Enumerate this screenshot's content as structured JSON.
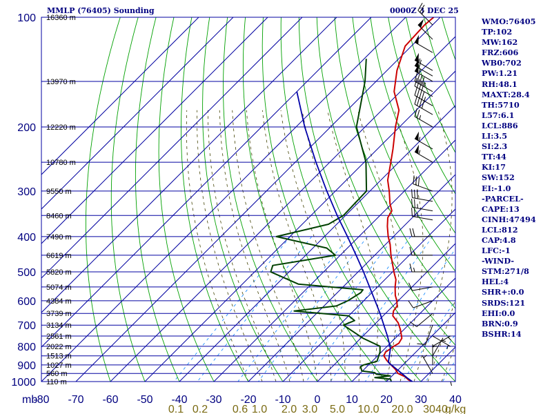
{
  "header": {
    "title": "MMLP (76405) Sounding",
    "time": "0000Z  3 DEC 25"
  },
  "indices": [
    "WMO:76405",
    "TP:102",
    "MW:162",
    "FRZ:606",
    "WB0:702",
    "PW:1.21",
    "RH:48.1",
    "MAXT:28.4",
    "TH:5710",
    "L57:6.1",
    "LCL:886",
    "LI:3.5",
    "SI:2.3",
    "TT:44",
    "KI:17",
    "SW:152",
    "EI:-1.0",
    "-PARCEL-",
    "CAPE:13",
    "CINH:47494",
    "LCL:812",
    "CAP:4.8",
    "LFC:-1",
    "-WIND-",
    "STM:271/8",
    "HEL:4",
    "SHR+:0.0",
    "SRDS:121",
    "EHI:0.0",
    "BRN:0.9",
    "BSHR:14"
  ],
  "chart_data": {
    "type": "line",
    "subtype": "skew-T log-P sounding",
    "pressure_unit": "mb",
    "pressure_ticks": [
      100,
      200,
      300,
      400,
      500,
      600,
      700,
      800,
      900,
      1000
    ],
    "pressure_range": [
      100,
      1000
    ],
    "pressure_log_scale": true,
    "temperature_ticks": [
      -80,
      -70,
      -60,
      -50,
      -40,
      -30,
      -20,
      -10,
      0,
      10,
      20,
      30,
      40
    ],
    "temperature_range_at_bottom": [
      -80,
      40
    ],
    "mixing_ratio_unit": "g/kg",
    "mixing_ratio_labels": [
      "0.1",
      "0.2",
      "0.6",
      "1.0",
      "2.0",
      "3.0",
      "5.0",
      "10.0",
      "20.0",
      "30",
      "40"
    ],
    "height_labels": [
      {
        "p": 100,
        "label": "16360 m"
      },
      {
        "p": 150,
        "label": "13970 m"
      },
      {
        "p": 200,
        "label": "12220 m"
      },
      {
        "p": 250,
        "label": "10780 m"
      },
      {
        "p": 300,
        "label": "9550 m"
      },
      {
        "p": 350,
        "label": "8460 m"
      },
      {
        "p": 400,
        "label": "7490 m"
      },
      {
        "p": 450,
        "label": "6619 m"
      },
      {
        "p": 500,
        "label": "5820 m"
      },
      {
        "p": 550,
        "label": "5074 m"
      },
      {
        "p": 600,
        "label": "4384 m"
      },
      {
        "p": 650,
        "label": "3739 m"
      },
      {
        "p": 700,
        "label": "3134 m"
      },
      {
        "p": 750,
        "label": "2561 m"
      },
      {
        "p": 800,
        "label": "2022 m"
      },
      {
        "p": 850,
        "label": "1513 m"
      },
      {
        "p": 900,
        "label": "1027 m"
      },
      {
        "p": 950,
        "label": "560 m"
      },
      {
        "p": 1000,
        "label": "110 m"
      }
    ],
    "series": [
      {
        "name": "Temperature",
        "color": "#cc0000",
        "points": [
          [
            1000,
            27.5
          ],
          [
            990,
            26
          ],
          [
            970,
            24
          ],
          [
            950,
            21
          ],
          [
            925,
            19
          ],
          [
            900,
            16.5
          ],
          [
            875,
            14
          ],
          [
            850,
            11.8
          ],
          [
            830,
            11.2
          ],
          [
            815,
            11.6
          ],
          [
            800,
            11.9
          ],
          [
            785,
            12.5
          ],
          [
            760,
            11.9
          ],
          [
            720,
            9
          ],
          [
            690,
            6.4
          ],
          [
            660,
            2.8
          ],
          [
            640,
            1.6
          ],
          [
            620,
            1.2
          ],
          [
            600,
            -0.4
          ],
          [
            580,
            -2.4
          ],
          [
            550,
            -4.9
          ],
          [
            525,
            -6.8
          ],
          [
            500,
            -9.6
          ],
          [
            450,
            -15.3
          ],
          [
            420,
            -18.7
          ],
          [
            400,
            -21.5
          ],
          [
            375,
            -24.7
          ],
          [
            355,
            -27.1
          ],
          [
            340,
            -27.9
          ],
          [
            325,
            -30.5
          ],
          [
            300,
            -34.4
          ],
          [
            280,
            -38
          ],
          [
            250,
            -42.3
          ],
          [
            230,
            -45.5
          ],
          [
            200,
            -51.2
          ],
          [
            180,
            -55
          ],
          [
            160,
            -61.8
          ],
          [
            140,
            -67.1
          ],
          [
            120,
            -71.8
          ],
          [
            105,
            -72.3
          ],
          [
            100,
            -71.9
          ]
        ]
      },
      {
        "name": "Dewpoint",
        "color": "#004000",
        "points": [
          [
            1000,
            21.4
          ],
          [
            985,
            20.5
          ],
          [
            975,
            15.5
          ],
          [
            965,
            19.5
          ],
          [
            955,
            15
          ],
          [
            945,
            14
          ],
          [
            935,
            9.8
          ],
          [
            910,
            8.2
          ],
          [
            900,
            8.6
          ],
          [
            880,
            11.4
          ],
          [
            830,
            9.6
          ],
          [
            800,
            7.9
          ],
          [
            760,
            0.6
          ],
          [
            700,
            -8.8
          ],
          [
            680,
            -6.9
          ],
          [
            660,
            -10
          ],
          [
            640,
            -27.2
          ],
          [
            620,
            -16.4
          ],
          [
            600,
            -14.6
          ],
          [
            570,
            -13.2
          ],
          [
            560,
            -13.4
          ],
          [
            540,
            -33.8
          ],
          [
            500,
            -45.3
          ],
          [
            480,
            -46.6
          ],
          [
            450,
            -31.4
          ],
          [
            430,
            -36
          ],
          [
            400,
            -53.9
          ],
          [
            370,
            -42.4
          ],
          [
            350,
            -40.6
          ],
          [
            300,
            -41
          ],
          [
            250,
            -49.5
          ],
          [
            200,
            -62.5
          ],
          [
            150,
            -73.2
          ],
          [
            130,
            -79.4
          ]
        ]
      },
      {
        "name": "Parcel",
        "color": "#0000a8",
        "points": [
          [
            1000,
            27.5
          ],
          [
            980,
            25.3
          ],
          [
            950,
            22.1
          ],
          [
            900,
            16.6
          ],
          [
            886,
            15.0
          ],
          [
            850,
            13.4
          ],
          [
            812,
            11.6
          ],
          [
            800,
            10.8
          ],
          [
            750,
            7.1
          ],
          [
            700,
            2.9
          ],
          [
            650,
            -1.6
          ],
          [
            600,
            -6.7
          ],
          [
            550,
            -12.3
          ],
          [
            500,
            -18.4
          ],
          [
            450,
            -25.4
          ],
          [
            400,
            -33.3
          ],
          [
            350,
            -42.4
          ],
          [
            300,
            -52.5
          ],
          [
            250,
            -64.0
          ],
          [
            200,
            -77.5
          ],
          [
            160,
            -90.0
          ]
        ]
      }
    ],
    "wind_barbs": [
      {
        "p": 105,
        "dir": 315,
        "spd": 25
      },
      {
        "p": 115,
        "dir": 315,
        "spd": 50
      },
      {
        "p": 125,
        "dir": 300,
        "spd": 50
      },
      {
        "p": 140,
        "dir": 300,
        "spd": 55
      },
      {
        "p": 145,
        "dir": 300,
        "spd": 60
      },
      {
        "p": 150,
        "dir": 300,
        "spd": 55
      },
      {
        "p": 160,
        "dir": 300,
        "spd": 45
      },
      {
        "p": 165,
        "dir": 300,
        "spd": 40
      },
      {
        "p": 175,
        "dir": 300,
        "spd": 45
      },
      {
        "p": 185,
        "dir": 300,
        "spd": 40
      },
      {
        "p": 200,
        "dir": 300,
        "spd": 25
      },
      {
        "p": 230,
        "dir": 300,
        "spd": 55
      },
      {
        "p": 250,
        "dir": 300,
        "spd": 55
      },
      {
        "p": 300,
        "dir": 290,
        "spd": 30
      },
      {
        "p": 320,
        "dir": 280,
        "spd": 30
      },
      {
        "p": 340,
        "dir": 280,
        "spd": 25
      },
      {
        "p": 360,
        "dir": 280,
        "spd": 25
      },
      {
        "p": 400,
        "dir": 270,
        "spd": 20
      },
      {
        "p": 450,
        "dir": 270,
        "spd": 15
      },
      {
        "p": 500,
        "dir": 270,
        "spd": 15
      },
      {
        "p": 550,
        "dir": 260,
        "spd": 10
      },
      {
        "p": 600,
        "dir": 250,
        "spd": 10
      },
      {
        "p": 650,
        "dir": 230,
        "spd": 10
      },
      {
        "p": 700,
        "dir": 200,
        "spd": 10
      },
      {
        "p": 750,
        "dir": 120,
        "spd": 5
      },
      {
        "p": 800,
        "dir": 60,
        "spd": 5
      },
      {
        "p": 850,
        "dir": 30,
        "spd": 5
      },
      {
        "p": 900,
        "dir": 0,
        "spd": 5
      },
      {
        "p": 950,
        "dir": 330,
        "spd": 5
      },
      {
        "p": 1000,
        "dir": 90,
        "spd": 5
      }
    ],
    "colors": {
      "isobar": "#0000a0",
      "isotherm": "#0000a0",
      "dry_adiabat": "#00a000",
      "moist_adiabat": "#404000",
      "mixing_ratio": "#0080ff",
      "axis_text": "#000080"
    }
  }
}
